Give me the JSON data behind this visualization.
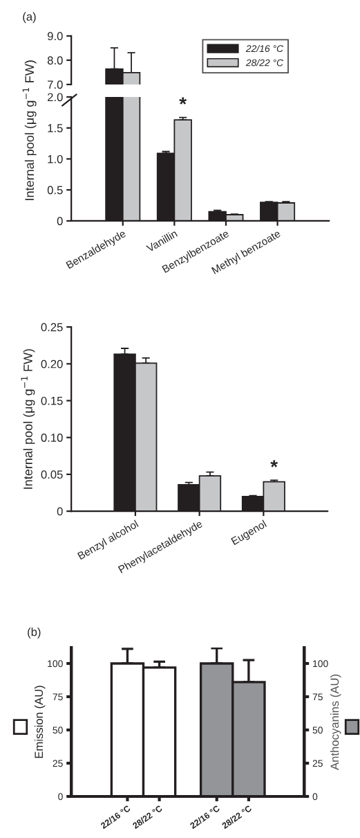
{
  "chart_data": [
    {
      "type": "bar",
      "title": "(a)",
      "categories": [
        "Benzaldehyde",
        "Vanillin",
        "Benzylbenzoate",
        "Methyl benzoate"
      ],
      "series": [
        {
          "name": "22/16 °C",
          "color": "#231f20",
          "values": [
            7.64,
            null,
            null,
            null
          ],
          "errors": [
            [
              7.64,
              8.51
            ],
            null,
            null,
            null
          ]
        },
        {
          "name": "28/22 °C",
          "color": "#c6c7c9",
          "values": [
            7.49,
            null,
            null,
            null
          ],
          "errors": [
            [
              7.49,
              8.31
            ],
            null,
            null,
            null
          ]
        }
      ],
      "ylim": [
        7,
        9
      ],
      "yticks": [
        {
          "value": 7,
          "label": "7.0"
        },
        {
          "value": 8,
          "label": "8.0"
        },
        {
          "value": 9,
          "label": "9.0"
        }
      ],
      "tick_labels": "y",
      "legend": "top right",
      "grid": false
    },
    {
      "type": "bar",
      "ylabel": "Internal pool (μg g$^{−1}$ FW)",
      "categories": [
        "Benzaldehyde",
        "Vanillin",
        "Benzylbenzoate",
        "Methyl benzoate"
      ],
      "series": [
        {
          "color": "#231f20",
          "values": [
            null,
            1.09,
            0.15,
            0.3
          ],
          "errors": [
            null,
            [
              1.09,
              1.12
            ],
            [
              0.15,
              0.17
            ],
            [
              0.3,
              0.31
            ]
          ]
        },
        {
          "color": "#c6c7c9",
          "values": [
            null,
            1.63,
            0.1,
            0.29
          ],
          "errors": [
            null,
            [
              1.63,
              1.67
            ],
            [
              0.1,
              0.11
            ],
            [
              0.29,
              0.31
            ]
          ]
        }
      ],
      "ylim": [
        0,
        2
      ],
      "yticks": [
        0,
        0.5,
        {
          "value": 1,
          "label": "1.0"
        },
        1.5,
        {
          "value": 2,
          "label": "2.0"
        }
      ],
      "annotations": [
        {
          "text": "*",
          "x": "Vanillin",
          "y": 1.67
        }
      ],
      "grid": false
    },
    {
      "type": "bar",
      "ylabel": "Internal pool (μg g$^{−1}$ FW)",
      "categories": [
        "Benzyl alcohol",
        "Phenylacetaldehyde",
        "Eugenol"
      ],
      "series": [
        {
          "color": "#231f20",
          "values": [
            0.213,
            0.036,
            0.02
          ],
          "errors": [
            [
              0.213,
              0.221
            ],
            [
              0.036,
              0.039
            ],
            [
              0.02,
              0.021
            ]
          ]
        },
        {
          "color": "#c6c7c9",
          "values": [
            0.201,
            0.048,
            0.04
          ],
          "errors": [
            [
              0.201,
              0.208
            ],
            [
              0.048,
              0.053
            ],
            [
              0.04,
              0.042
            ]
          ]
        }
      ],
      "ylim": [
        0,
        0.25
      ],
      "yticks": [
        0,
        0.05,
        {
          "value": 0.1,
          "label": "0.10"
        },
        0.15,
        {
          "value": 0.2,
          "label": "0.20"
        },
        0.25
      ],
      "annotations": [
        {
          "text": "*",
          "x": "Eugenol",
          "y": 0.042
        }
      ],
      "grid": false
    },
    {
      "type": "bar",
      "title": "(b)",
      "ylabel": "Emission (AU)",
      "y2label": "Anthocyanins (AU)",
      "categories": [
        "22/16 °C",
        "28/22 °C",
        "22/16 °C",
        "28/22 °C"
      ],
      "series": [
        {
          "color": "#ffffff",
          "values": [
            100,
            96.9,
            null,
            null
          ],
          "errors": [
            11,
            4.5,
            null,
            null
          ]
        },
        {
          "color": "#939598",
          "axis": "y2",
          "values": [
            null,
            null,
            100,
            86.0
          ],
          "errors": [
            null,
            null,
            11.5,
            16.5
          ]
        }
      ],
      "ylim": [
        0,
        112
      ],
      "yticks": [
        0,
        25,
        50,
        75,
        100
      ],
      "y2lim": [
        0,
        112
      ],
      "y2ticks": [
        0,
        25,
        50,
        75,
        100
      ],
      "grid": false
    }
  ]
}
